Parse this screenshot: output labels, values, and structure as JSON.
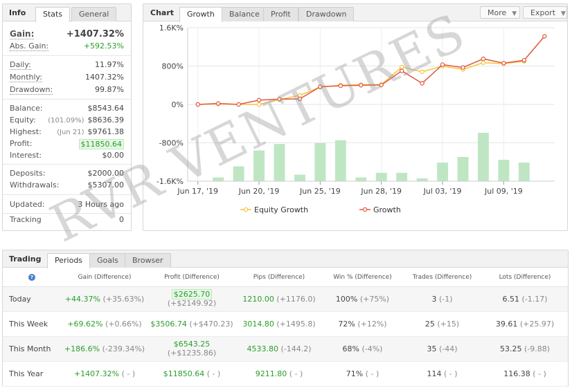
{
  "info": {
    "title": "Info",
    "tabs": [
      "Stats",
      "General"
    ],
    "gain_label": "Gain:",
    "gain_value": "+1407.32%",
    "abs_gain_label": "Abs. Gain:",
    "abs_gain_value": "+592.53%",
    "daily_label": "Daily:",
    "daily_value": "11.97%",
    "monthly_label": "Monthly:",
    "monthly_value": "1407.32%",
    "drawdown_label": "Drawdown:",
    "drawdown_value": "99.87%",
    "balance_label": "Balance:",
    "balance_value": "$8543.64",
    "equity_label": "Equity:",
    "equity_sub": "(101.09%)",
    "equity_value": "$8636.39",
    "highest_label": "Highest:",
    "highest_sub": "(Jun 21)",
    "highest_value": "$9761.38",
    "profit_label": "Profit:",
    "profit_value": "$11850.64",
    "interest_label": "Interest:",
    "interest_value": "$0.00",
    "deposits_label": "Deposits:",
    "deposits_value": "$2000.00",
    "withdrawals_label": "Withdrawals:",
    "withdrawals_value": "$5307.00",
    "updated_label": "Updated:",
    "updated_value": "3 Hours ago",
    "tracking_label": "Tracking",
    "tracking_value": "0"
  },
  "chart_panel": {
    "title": "Chart",
    "tabs": [
      "Growth",
      "Balance",
      "Profit",
      "Drawdown"
    ],
    "more_label": "More",
    "export_label": "Export"
  },
  "chart_data": {
    "type": "line",
    "y_tick_labels": [
      "1.6K%",
      "800%",
      "0%",
      "-800%",
      "-1.6K%"
    ],
    "y_ticks": [
      1600,
      800,
      0,
      -800,
      -1600
    ],
    "ylim": [
      -1600,
      1600
    ],
    "x_tick_labels": [
      "Jun 17, '19",
      "Jun 20, '19",
      "Jun 25, '19",
      "Jun 28, '19",
      "Jul 03, '19",
      "Jul 09, '19"
    ],
    "x_tick_index": [
      0,
      3,
      6,
      9,
      12,
      15
    ],
    "x_count": 18,
    "series": [
      {
        "name": "Equity Growth",
        "color": "#f5c33b",
        "values": [
          0,
          10,
          0,
          0,
          100,
          190,
          360,
          400,
          410,
          415,
          780,
          680,
          800,
          730,
          870,
          850,
          900,
          null
        ]
      },
      {
        "name": "Growth",
        "color": "#e0573c",
        "values": [
          0,
          20,
          0,
          90,
          110,
          115,
          370,
          390,
          400,
          405,
          700,
          440,
          830,
          770,
          950,
          860,
          920,
          1420
        ]
      }
    ],
    "bars": {
      "color": "#bfe6c3",
      "values": [
        0,
        40,
        160,
        330,
        400,
        70,
        410,
        440,
        40,
        90,
        90,
        30,
        200,
        260,
        520,
        230,
        200,
        0
      ]
    },
    "legend_position": "bottom"
  },
  "trading": {
    "title": "Trading",
    "tabs": [
      "Periods",
      "Goals",
      "Browser"
    ],
    "columns": [
      "Gain (Difference)",
      "Profit (Difference)",
      "Pips (Difference)",
      "Win % (Difference)",
      "Trades (Difference)",
      "Lots (Difference)"
    ],
    "help_glyph": "?",
    "rows": [
      {
        "period": "Today",
        "gain": "+44.37%",
        "gain_diff": "(+35.63%)",
        "profit": "$2625.70",
        "profit_diff": "(+$2149.92)",
        "pips": "1210.00",
        "pips_diff": "(+1176.0)",
        "win": "100%",
        "win_diff": "(+75%)",
        "trades": "3",
        "trades_diff": "(-1)",
        "lots": "6.51",
        "lots_diff": "(-1.17)"
      },
      {
        "period": "This Week",
        "gain": "+69.62%",
        "gain_diff": "(+0.66%)",
        "profit": "$3506.74",
        "profit_diff": "(+$470.23)",
        "pips": "3014.80",
        "pips_diff": "(+1495.8)",
        "win": "72%",
        "win_diff": "(+12%)",
        "trades": "25",
        "trades_diff": "(+15)",
        "lots": "39.61",
        "lots_diff": "(+25.97)"
      },
      {
        "period": "This Month",
        "gain": "+186.6%",
        "gain_diff": "(-239.34%)",
        "profit": "$6543.25",
        "profit_diff": "(+$1235.86)",
        "pips": "4533.80",
        "pips_diff": "(-144.2)",
        "win": "68%",
        "win_diff": "(-4%)",
        "trades": "35",
        "trades_diff": "(-44)",
        "lots": "53.25",
        "lots_diff": "(-9.88)"
      },
      {
        "period": "This Year",
        "gain": "+1407.32%",
        "gain_diff": "( - )",
        "profit": "$11850.64",
        "profit_diff": "( - )",
        "pips": "9211.80",
        "pips_diff": "( - )",
        "win": "71%",
        "win_diff": "( - )",
        "trades": "114",
        "trades_diff": "( - )",
        "lots": "116.38",
        "lots_diff": "( - )"
      }
    ]
  },
  "watermark": "RVR VENTURES"
}
